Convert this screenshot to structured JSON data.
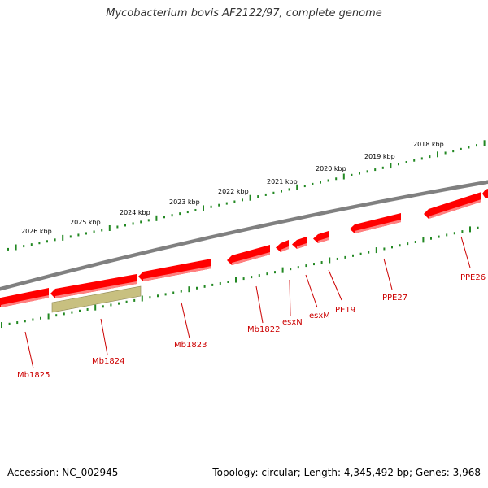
{
  "title": "Mycobacterium bovis AF2122/97, complete genome",
  "footer": {
    "accession": "Accession: NC_002945",
    "stats": "Topology: circular; Length: 4,345,492 bp; Genes: 3,968"
  },
  "colors": {
    "backbone": "#808080",
    "gene": "#ff0000",
    "gene_shadow": "#ff8080",
    "pseudo_gene": "#c8c080",
    "ticks": "#228822",
    "labels": "#cc0000"
  },
  "kbp_labels": [
    "2026 kbp",
    "2025 kbp",
    "2024 kbp",
    "2023 kbp",
    "2022 kbp",
    "2021 kbp",
    "2020 kbp",
    "2019 kbp",
    "2018 kbp"
  ],
  "genes": [
    {
      "name": "Mb1825",
      "strand": "minus"
    },
    {
      "name": "Mb1824",
      "strand": "minus",
      "kind": "pseudo"
    },
    {
      "name": "Mb1823",
      "strand": "minus"
    },
    {
      "name": "Mb1822",
      "strand": "minus"
    },
    {
      "name": "esxN",
      "strand": "minus"
    },
    {
      "name": "esxM",
      "strand": "minus"
    },
    {
      "name": "PE19",
      "strand": "minus"
    },
    {
      "name": "PPE27",
      "strand": "minus"
    },
    {
      "name": "PPE26",
      "strand": "minus"
    }
  ]
}
